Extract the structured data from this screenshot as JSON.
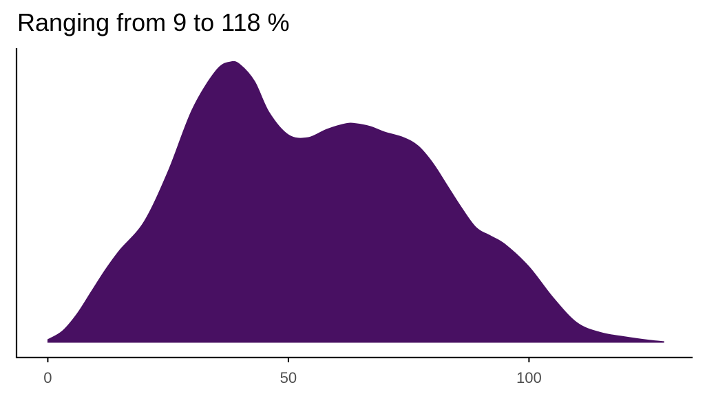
{
  "chart_data": {
    "type": "area",
    "title": "Ranging from 9 to 118 %",
    "xlabel": "",
    "ylabel": "",
    "xlim": [
      -6.5,
      134
    ],
    "xticks": [
      0,
      50,
      100
    ],
    "xtick_labels": [
      "0",
      "50",
      "100"
    ],
    "grid": false,
    "legend": "none",
    "fill_color": "#481062",
    "series": [
      {
        "x": [
          0,
          3,
          6,
          9,
          12,
          15,
          20,
          25,
          30,
          35,
          38,
          40,
          43,
          46,
          50,
          54,
          58,
          62,
          64,
          67,
          70,
          74,
          77,
          80,
          83,
          86,
          89,
          92,
          95,
          100,
          105,
          110,
          115,
          120,
          125,
          128
        ],
        "y": [
          0.01,
          0.04,
          0.1,
          0.18,
          0.26,
          0.33,
          0.43,
          0.61,
          0.83,
          0.97,
          1.0,
          0.99,
          0.93,
          0.82,
          0.74,
          0.73,
          0.76,
          0.78,
          0.78,
          0.77,
          0.75,
          0.73,
          0.7,
          0.64,
          0.56,
          0.48,
          0.41,
          0.38,
          0.35,
          0.27,
          0.16,
          0.07,
          0.035,
          0.02,
          0.008,
          0.003
        ]
      }
    ]
  }
}
